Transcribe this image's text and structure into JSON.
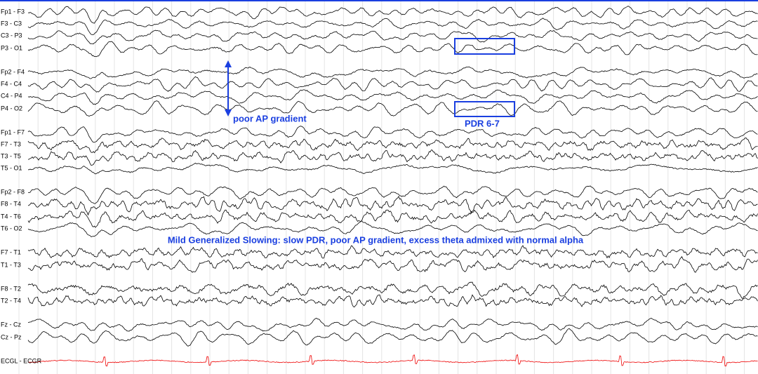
{
  "channels": [
    {
      "label": "Fp1 - F3"
    },
    {
      "label": "F3 - C3"
    },
    {
      "label": "C3 - P3"
    },
    {
      "label": "P3 - O1"
    },
    {
      "label": "Fp2 - F4"
    },
    {
      "label": "F4 - C4"
    },
    {
      "label": "C4 - P4"
    },
    {
      "label": "P4 - O2"
    },
    {
      "label": "Fp1 - F7"
    },
    {
      "label": "F7 - T3"
    },
    {
      "label": "T3 - T5"
    },
    {
      "label": "T5 - O1"
    },
    {
      "label": "Fp2 - F8"
    },
    {
      "label": "F8 - T4"
    },
    {
      "label": "T4 - T6"
    },
    {
      "label": "T6 - O2"
    },
    {
      "label": "F7 - T1"
    },
    {
      "label": "T1 - T3"
    },
    {
      "label": "F8 - T2"
    },
    {
      "label": "T2 - T4"
    },
    {
      "label": "Fz - Cz"
    },
    {
      "label": "Cz - Pz"
    },
    {
      "label": "ECGL - ECGR"
    }
  ],
  "annotations": {
    "ap_gradient": "poor AP gradient",
    "pdr": "PDR  6-7",
    "summary": "Mild Generalized Slowing: slow PDR, poor AP gradient, excess theta admixed with normal alpha"
  }
}
